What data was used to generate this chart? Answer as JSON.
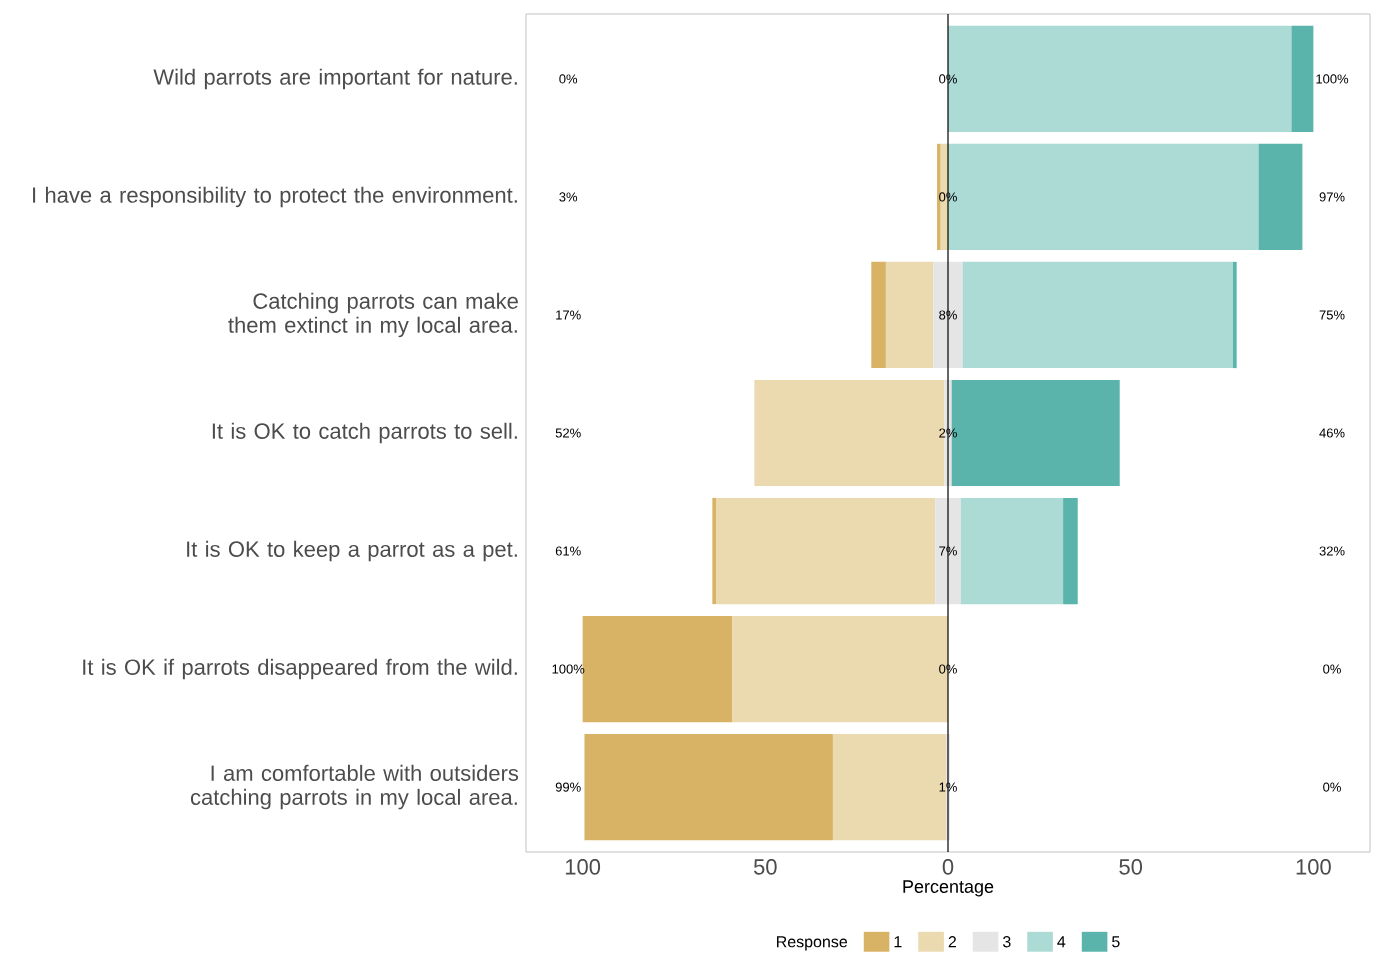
{
  "chart_data": {
    "type": "bar",
    "orientation": "horizontal",
    "xlabel": "Percentage",
    "legend_title": "Response",
    "legend": "bottom",
    "categories": [
      "Wild parrots are important for nature.",
      "I have a responsibility to protect the environment.",
      "Catching parrots can make them extinct in my local area.",
      "It is OK to catch parrots to sell.",
      "It is OK to keep a parrot as a pet.",
      "It is OK if parrots disappeared from the wild.",
      "I am comfortable with outsiders catching parrots in my local area."
    ],
    "xlim": [
      -115.5,
      115.5
    ],
    "xticks": [
      {
        "value": -100,
        "label": "100"
      },
      {
        "value": -50,
        "label": "50"
      },
      0,
      50,
      100
    ],
    "series": [
      {
        "name": "1",
        "color": "#d9b365",
        "values": [
          null,
          1,
          4,
          null,
          1,
          41,
          68
        ],
        "base": [
          null,
          -3,
          -21,
          null,
          -64.5,
          -100,
          -99.5
        ]
      },
      {
        "name": "2",
        "color": "#ebd9b0",
        "values": [
          null,
          2,
          13,
          52,
          60,
          59,
          31
        ],
        "base": [
          null,
          -2,
          -17,
          -53,
          -63.5,
          -59,
          -31.5
        ]
      },
      {
        "name": "3",
        "color": "#e5e5e5",
        "values": [
          null,
          null,
          8,
          2,
          7,
          null,
          1
        ],
        "base": [
          null,
          null,
          -4,
          -1,
          -3.5,
          null,
          -0.5
        ]
      },
      {
        "name": "4",
        "color": "#acdad5",
        "values": [
          94,
          85,
          74,
          null,
          28,
          null,
          null
        ],
        "base": [
          0,
          0,
          4,
          null,
          3.5,
          null,
          null
        ]
      },
      {
        "name": "5",
        "color": "#5ab4ac",
        "values": [
          6,
          12,
          1,
          46,
          4,
          null,
          null
        ],
        "base": [
          94,
          85,
          78,
          1,
          31.5,
          null,
          null
        ]
      }
    ],
    "ref_lines": [
      {
        "axis": "x",
        "value": 0,
        "color": "#000000"
      }
    ],
    "annotations": [
      "0%",
      "0%",
      "100%",
      "3%",
      "0%",
      "97%",
      "17%",
      "8%",
      "75%",
      "52%",
      "2%",
      "46%",
      "61%",
      "7%",
      "32%",
      "100%",
      "0%",
      "0%",
      "99%",
      "1%",
      "0%"
    ]
  }
}
